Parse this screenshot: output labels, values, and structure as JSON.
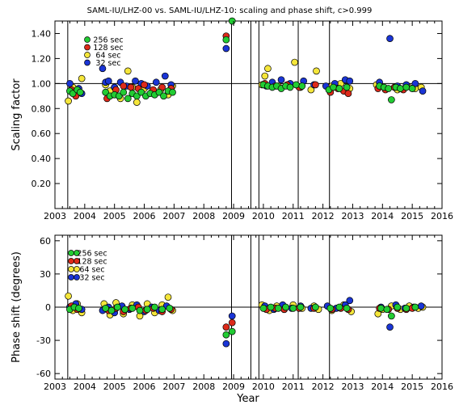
{
  "title": "SAML-IU/LHZ-00 vs. SAML-IU/LHZ-10: scaling and phase shift, c>0.999",
  "legend_labels": [
    "256 sec",
    "128 sec",
    "64 sec",
    "32 sec"
  ],
  "colors": {
    "256": "#22cc33",
    "128": "#dd2a1a",
    "64": "#f5e63a",
    "32": "#1a35d6"
  },
  "events": [
    2003.43,
    2008.93,
    2009.58,
    2009.85,
    2011.17,
    2012.22
  ],
  "x_ticks": [
    "2003",
    "2004",
    "2005",
    "2006",
    "2007",
    "2008",
    "2009",
    "2010",
    "2011",
    "2012",
    "2013",
    "2014",
    "2015",
    "2016"
  ],
  "chart_data": [
    {
      "type": "scatter",
      "title": "SAML-IU/LHZ-00 vs. SAML-IU/LHZ-10: scaling and phase shift, c>0.999",
      "xlabel": "",
      "ylabel": "Scaling factor",
      "xlim": [
        2003,
        2016
      ],
      "ylim": [
        0,
        1.5
      ],
      "y_ticks": [
        "0.20",
        "0.40",
        "0.60",
        "0.80",
        "1.00",
        "1.20",
        "1.40"
      ],
      "reference_line": 1.0,
      "series": [
        {
          "name": "256 sec",
          "points": [
            [
              2003.5,
              0.94
            ],
            [
              2003.6,
              0.92
            ],
            [
              2003.75,
              0.95
            ],
            [
              2003.85,
              0.93
            ],
            [
              2004.7,
              0.93
            ],
            [
              2004.85,
              0.9
            ],
            [
              2005.0,
              0.91
            ],
            [
              2005.15,
              0.9
            ],
            [
              2005.3,
              0.93
            ],
            [
              2005.45,
              0.88
            ],
            [
              2005.6,
              0.92
            ],
            [
              2005.75,
              0.9
            ],
            [
              2005.9,
              0.93
            ],
            [
              2006.05,
              0.9
            ],
            [
              2006.2,
              0.92
            ],
            [
              2006.35,
              0.91
            ],
            [
              2006.5,
              0.93
            ],
            [
              2006.65,
              0.9
            ],
            [
              2006.8,
              0.94
            ],
            [
              2006.95,
              0.93
            ],
            [
              2008.75,
              1.35
            ],
            [
              2008.95,
              1.5
            ],
            [
              2010.0,
              0.99
            ],
            [
              2010.15,
              0.98
            ],
            [
              2010.3,
              0.97
            ],
            [
              2010.45,
              0.98
            ],
            [
              2010.6,
              0.96
            ],
            [
              2010.75,
              0.98
            ],
            [
              2010.9,
              0.97
            ],
            [
              2011.1,
              0.99
            ],
            [
              2011.3,
              0.98
            ],
            [
              2012.2,
              0.95
            ],
            [
              2012.35,
              0.97
            ],
            [
              2012.55,
              0.96
            ],
            [
              2012.8,
              0.97
            ],
            [
              2013.9,
              0.98
            ],
            [
              2014.05,
              0.97
            ],
            [
              2014.2,
              0.96
            ],
            [
              2014.3,
              0.87
            ],
            [
              2014.45,
              0.97
            ],
            [
              2014.6,
              0.96
            ],
            [
              2014.8,
              0.97
            ],
            [
              2015.0,
              0.96
            ]
          ]
        },
        {
          "name": "128 sec",
          "points": [
            [
              2003.55,
              0.95
            ],
            [
              2003.7,
              0.9
            ],
            [
              2004.75,
              0.88
            ],
            [
              2005.05,
              0.95
            ],
            [
              2005.3,
              0.98
            ],
            [
              2005.55,
              0.97
            ],
            [
              2005.8,
              0.96
            ],
            [
              2006.0,
              0.99
            ],
            [
              2006.3,
              0.95
            ],
            [
              2006.6,
              0.97
            ],
            [
              2006.9,
              0.96
            ],
            [
              2008.75,
              1.38
            ],
            [
              2010.05,
              1.0
            ],
            [
              2010.4,
              0.98
            ],
            [
              2010.8,
              0.99
            ],
            [
              2011.2,
              0.97
            ],
            [
              2011.75,
              0.99
            ],
            [
              2012.25,
              0.93
            ],
            [
              2012.5,
              0.96
            ],
            [
              2012.7,
              0.94
            ],
            [
              2012.85,
              0.92
            ],
            [
              2013.85,
              0.96
            ],
            [
              2014.1,
              0.95
            ],
            [
              2014.4,
              0.97
            ],
            [
              2014.7,
              0.95
            ],
            [
              2015.0,
              0.96
            ]
          ]
        },
        {
          "name": "64 sec",
          "points": [
            [
              2003.45,
              0.86
            ],
            [
              2003.6,
              0.97
            ],
            [
              2003.75,
              0.92
            ],
            [
              2003.9,
              1.04
            ],
            [
              2004.7,
              0.99
            ],
            [
              2004.85,
              0.94
            ],
            [
              2005.0,
              0.97
            ],
            [
              2005.2,
              0.88
            ],
            [
              2005.45,
              1.1
            ],
            [
              2005.6,
              0.97
            ],
            [
              2005.75,
              0.85
            ],
            [
              2006.0,
              0.96
            ],
            [
              2006.25,
              0.93
            ],
            [
              2006.55,
              0.95
            ],
            [
              2006.8,
              0.91
            ],
            [
              2006.95,
              0.98
            ],
            [
              2009.95,
              0.99
            ],
            [
              2010.05,
              1.06
            ],
            [
              2010.15,
              1.12
            ],
            [
              2010.5,
              0.98
            ],
            [
              2011.05,
              1.17
            ],
            [
              2011.25,
              0.97
            ],
            [
              2011.6,
              0.95
            ],
            [
              2011.78,
              1.1
            ],
            [
              2012.3,
              0.98
            ],
            [
              2012.6,
              1.0
            ],
            [
              2012.9,
              0.96
            ],
            [
              2013.8,
              0.99
            ],
            [
              2014.1,
              0.96
            ],
            [
              2014.5,
              0.95
            ],
            [
              2014.85,
              0.98
            ],
            [
              2015.1,
              0.96
            ],
            [
              2015.3,
              0.97
            ]
          ]
        },
        {
          "name": "32 sec",
          "points": [
            [
              2003.5,
              1.0
            ],
            [
              2003.8,
              0.96
            ],
            [
              2003.9,
              0.92
            ],
            [
              2004.6,
              1.12
            ],
            [
              2004.7,
              1.01
            ],
            [
              2004.8,
              1.02
            ],
            [
              2005.0,
              0.97
            ],
            [
              2005.2,
              1.01
            ],
            [
              2005.4,
              0.98
            ],
            [
              2005.7,
              1.02
            ],
            [
              2005.9,
              1.0
            ],
            [
              2006.1,
              0.98
            ],
            [
              2006.4,
              1.01
            ],
            [
              2006.7,
              1.06
            ],
            [
              2006.9,
              0.99
            ],
            [
              2008.75,
              1.28
            ],
            [
              2010.1,
              0.98
            ],
            [
              2010.3,
              1.01
            ],
            [
              2010.6,
              1.03
            ],
            [
              2010.9,
              1.0
            ],
            [
              2011.35,
              1.02
            ],
            [
              2011.7,
              0.99
            ],
            [
              2012.1,
              0.98
            ],
            [
              2012.4,
              1.0
            ],
            [
              2012.75,
              1.03
            ],
            [
              2012.9,
              1.02
            ],
            [
              2013.9,
              1.01
            ],
            [
              2014.25,
              1.36
            ],
            [
              2014.5,
              0.98
            ],
            [
              2014.8,
              0.99
            ],
            [
              2015.1,
              1.0
            ],
            [
              2015.35,
              0.94
            ]
          ]
        }
      ]
    },
    {
      "type": "scatter",
      "title": "",
      "xlabel": "Year",
      "ylabel": "Phase shift (degrees)",
      "xlim": [
        2003,
        2016
      ],
      "ylim": [
        -65,
        65
      ],
      "y_ticks": [
        "-60",
        "-30",
        "0",
        "30",
        "60"
      ],
      "reference_line": 0,
      "series": [
        {
          "name": "256 sec",
          "points": [
            [
              2003.5,
              -2
            ],
            [
              2003.65,
              0
            ],
            [
              2003.8,
              -1
            ],
            [
              2004.7,
              -1
            ],
            [
              2004.9,
              -3
            ],
            [
              2005.1,
              0
            ],
            [
              2005.35,
              -2
            ],
            [
              2005.6,
              -1
            ],
            [
              2005.85,
              -3
            ],
            [
              2006.1,
              -2
            ],
            [
              2006.35,
              0
            ],
            [
              2006.6,
              -2
            ],
            [
              2006.85,
              -1
            ],
            [
              2008.75,
              -25
            ],
            [
              2008.95,
              -22
            ],
            [
              2010.0,
              -1
            ],
            [
              2010.25,
              0
            ],
            [
              2010.5,
              -1
            ],
            [
              2010.75,
              0
            ],
            [
              2011.0,
              -1
            ],
            [
              2011.25,
              0
            ],
            [
              2011.75,
              0
            ],
            [
              2012.25,
              -1
            ],
            [
              2012.55,
              0
            ],
            [
              2012.8,
              -1
            ],
            [
              2013.95,
              -1
            ],
            [
              2014.15,
              -2
            ],
            [
              2014.3,
              -8
            ],
            [
              2014.5,
              0
            ],
            [
              2014.8,
              -1
            ],
            [
              2015.1,
              0
            ]
          ]
        },
        {
          "name": "128 sec",
          "points": [
            [
              2003.55,
              1
            ],
            [
              2003.75,
              -2
            ],
            [
              2004.8,
              -3
            ],
            [
              2005.05,
              -1
            ],
            [
              2005.3,
              -4
            ],
            [
              2005.55,
              -1
            ],
            [
              2005.8,
              0
            ],
            [
              2006.05,
              -3
            ],
            [
              2006.3,
              -1
            ],
            [
              2006.6,
              -4
            ],
            [
              2006.9,
              -2
            ],
            [
              2008.75,
              -18
            ],
            [
              2008.95,
              -14
            ],
            [
              2010.1,
              -2
            ],
            [
              2010.4,
              -1
            ],
            [
              2010.7,
              -2
            ],
            [
              2011.2,
              -1
            ],
            [
              2011.7,
              -1
            ],
            [
              2012.3,
              -2
            ],
            [
              2012.6,
              -1
            ],
            [
              2012.85,
              -2
            ],
            [
              2013.9,
              -1
            ],
            [
              2014.2,
              -2
            ],
            [
              2014.5,
              -1
            ],
            [
              2014.8,
              -2
            ],
            [
              2015.0,
              -1
            ]
          ]
        },
        {
          "name": "64 sec",
          "points": [
            [
              2003.45,
              10
            ],
            [
              2003.6,
              -3
            ],
            [
              2003.75,
              3
            ],
            [
              2003.9,
              -5
            ],
            [
              2004.65,
              3
            ],
            [
              2004.85,
              -7
            ],
            [
              2005.05,
              4
            ],
            [
              2005.3,
              -6
            ],
            [
              2005.6,
              2
            ],
            [
              2005.85,
              -8
            ],
            [
              2006.1,
              3
            ],
            [
              2006.35,
              -5
            ],
            [
              2006.6,
              2
            ],
            [
              2006.8,
              9
            ],
            [
              2006.95,
              -3
            ],
            [
              2009.95,
              2
            ],
            [
              2010.2,
              -3
            ],
            [
              2010.45,
              1
            ],
            [
              2010.7,
              -2
            ],
            [
              2011.0,
              2
            ],
            [
              2011.3,
              -1
            ],
            [
              2011.7,
              1
            ],
            [
              2011.85,
              -2
            ],
            [
              2012.3,
              -3
            ],
            [
              2012.7,
              2
            ],
            [
              2012.95,
              -4
            ],
            [
              2013.85,
              -6
            ],
            [
              2014.0,
              -2
            ],
            [
              2014.3,
              1
            ],
            [
              2014.6,
              -2
            ],
            [
              2014.9,
              1
            ],
            [
              2015.2,
              -1
            ],
            [
              2015.35,
              0
            ]
          ]
        },
        {
          "name": "32 sec",
          "points": [
            [
              2003.5,
              0
            ],
            [
              2003.7,
              3
            ],
            [
              2003.9,
              -2
            ],
            [
              2004.6,
              -3
            ],
            [
              2004.8,
              0
            ],
            [
              2005.0,
              -5
            ],
            [
              2005.25,
              1
            ],
            [
              2005.5,
              -2
            ],
            [
              2005.75,
              2
            ],
            [
              2006.0,
              -4
            ],
            [
              2006.25,
              0
            ],
            [
              2006.5,
              -3
            ],
            [
              2006.75,
              1
            ],
            [
              2008.75,
              -33
            ],
            [
              2008.95,
              -8
            ],
            [
              2010.05,
              1
            ],
            [
              2010.35,
              -2
            ],
            [
              2010.65,
              2
            ],
            [
              2010.95,
              -1
            ],
            [
              2011.25,
              1
            ],
            [
              2011.6,
              -1
            ],
            [
              2012.15,
              1
            ],
            [
              2012.45,
              -1
            ],
            [
              2012.75,
              2
            ],
            [
              2012.9,
              6
            ],
            [
              2013.95,
              0
            ],
            [
              2014.25,
              -18
            ],
            [
              2014.45,
              2
            ],
            [
              2014.75,
              -1
            ],
            [
              2015.05,
              0
            ],
            [
              2015.3,
              1
            ]
          ]
        }
      ]
    }
  ]
}
